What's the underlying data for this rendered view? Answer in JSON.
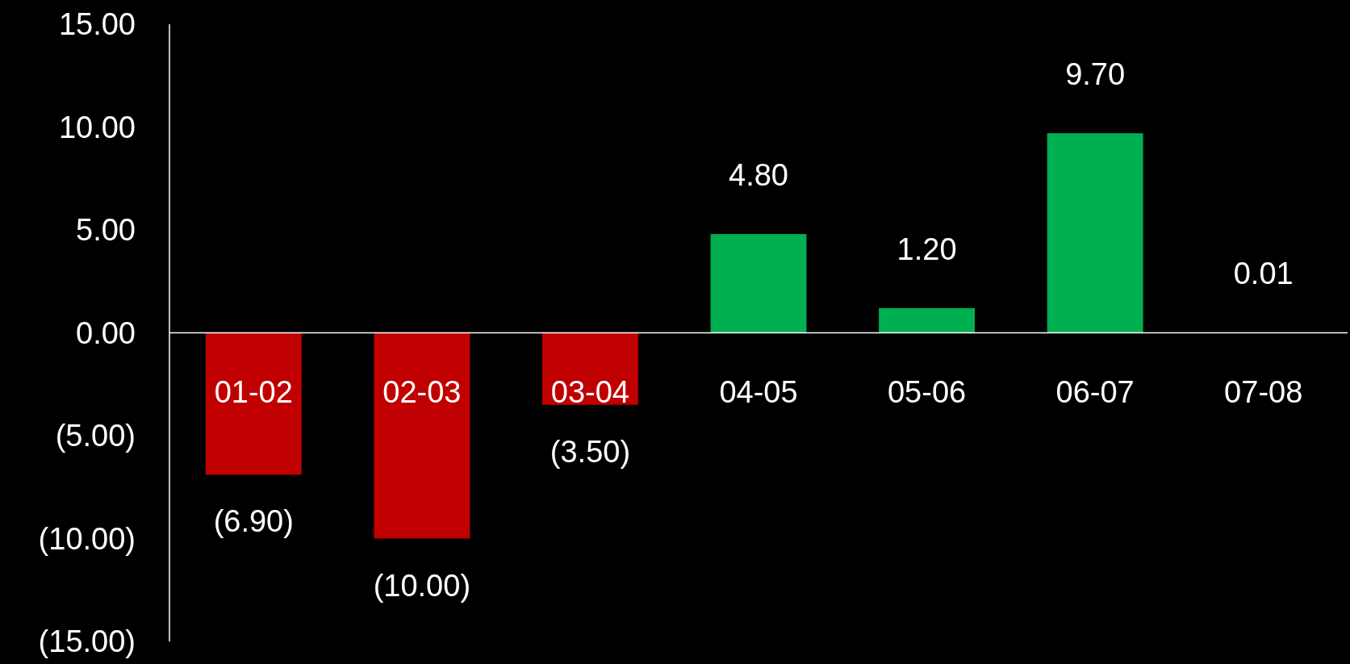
{
  "chart_data": {
    "type": "bar",
    "categories": [
      "01-02",
      "02-03",
      "03-04",
      "04-05",
      "05-06",
      "06-07",
      "07-08"
    ],
    "values": [
      -6.9,
      -10,
      -3.5,
      4.8,
      1.2,
      9.7,
      0.01
    ],
    "colors": [
      "#c00000",
      "#c00000",
      "#c00000",
      "#00b050",
      "#00b050",
      "#00b050",
      "#00b050"
    ],
    "value_labels": [
      "(6.90)",
      "(10.00)",
      "(3.50)",
      "4.80",
      "1.20",
      "9.70",
      "0.01"
    ],
    "ylim": [
      -15,
      15
    ],
    "yticks": [
      {
        "value": -15,
        "label": "(15.00)"
      },
      {
        "value": -10,
        "label": "(10.00)"
      },
      {
        "value": -5,
        "label": "(5.00)"
      },
      {
        "value": 0,
        "label": "0.00"
      },
      {
        "value": 5,
        "label": "5.00"
      },
      {
        "value": 10,
        "label": "10.00"
      },
      {
        "value": 15,
        "label": "15.00"
      }
    ]
  }
}
